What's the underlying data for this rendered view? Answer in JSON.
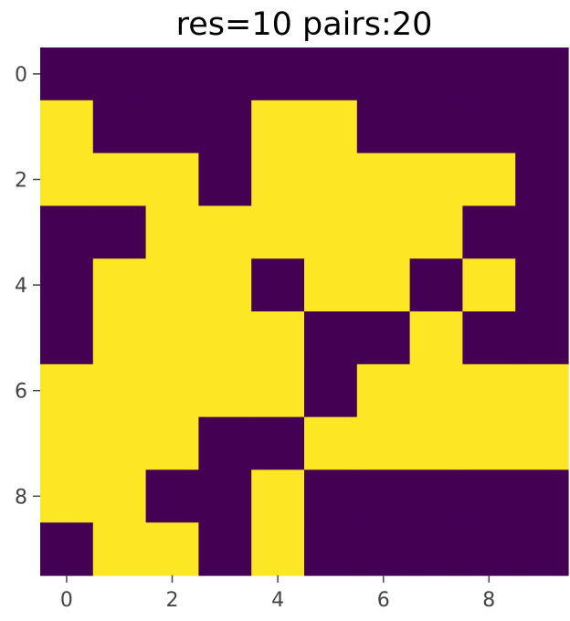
{
  "chart_data": {
    "type": "heatmap",
    "title": "res=10 pairs:20",
    "xlabel": "",
    "ylabel": "",
    "x_ticks": [
      0,
      2,
      4,
      6,
      8
    ],
    "y_ticks": [
      0,
      2,
      4,
      6,
      8
    ],
    "xlim": [
      -0.5,
      9.5
    ],
    "ylim": [
      9.5,
      -0.5
    ],
    "grid": false,
    "colormap": "viridis",
    "colors": {
      "low": "#440154",
      "high": "#fde725"
    },
    "values": [
      [
        0,
        0,
        0,
        0,
        0,
        0,
        0,
        0,
        0,
        0
      ],
      [
        1,
        0,
        0,
        0,
        1,
        1,
        0,
        0,
        0,
        0
      ],
      [
        1,
        1,
        1,
        0,
        1,
        1,
        1,
        1,
        1,
        0
      ],
      [
        0,
        0,
        1,
        1,
        1,
        1,
        1,
        1,
        0,
        0
      ],
      [
        0,
        1,
        1,
        1,
        0,
        1,
        1,
        0,
        1,
        0
      ],
      [
        0,
        1,
        1,
        1,
        1,
        0,
        0,
        1,
        0,
        0
      ],
      [
        1,
        1,
        1,
        1,
        1,
        0,
        1,
        1,
        1,
        1
      ],
      [
        1,
        1,
        1,
        0,
        0,
        1,
        1,
        1,
        1,
        1
      ],
      [
        1,
        1,
        0,
        0,
        1,
        0,
        0,
        0,
        0,
        0
      ],
      [
        0,
        1,
        1,
        0,
        1,
        0,
        0,
        0,
        0,
        0
      ]
    ]
  }
}
